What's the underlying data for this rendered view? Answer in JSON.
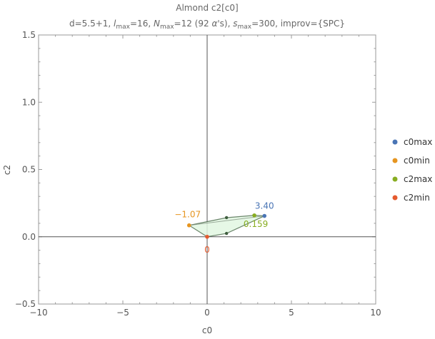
{
  "chart_data": {
    "type": "scatter",
    "title": "Almond c2[c0]",
    "subtitle_parts": {
      "d": "d=5.5+1, ",
      "l_sym": "l",
      "l_sub": "max",
      "l_val": "=16, ",
      "n_sym": "N",
      "n_sub": "max",
      "n_val": "=12 (92 ",
      "alpha": "α",
      "n_tail": "'s), ",
      "s_sym": "s",
      "s_sub": "max",
      "s_val": "=300, improv={SPC}"
    },
    "xlabel": "c0",
    "ylabel": "c2",
    "xlim": [
      -10,
      10
    ],
    "ylim": [
      -0.5,
      1.5
    ],
    "x_ticks": [
      -10,
      -5,
      0,
      5,
      10
    ],
    "y_ticks": [
      -0.5,
      0.0,
      0.5,
      1.0,
      1.5
    ],
    "x_tick_labels": [
      "−10",
      "−5",
      "0",
      "5",
      "10"
    ],
    "y_tick_labels": [
      "−0.5",
      "0.0",
      "0.5",
      "1.0",
      "1.5"
    ],
    "grid": false,
    "legend_position": "right",
    "region": {
      "fill": "#e2f7e2",
      "outer_boundary": [
        [
          -1.07,
          0.085
        ],
        [
          1.15,
          0.142
        ],
        [
          2.8,
          0.159
        ],
        [
          3.4,
          0.155
        ],
        [
          1.15,
          0.025
        ],
        [
          0.0,
          0.0
        ],
        [
          -1.07,
          0.085
        ]
      ],
      "inner_edge": [
        [
          -1.07,
          0.085
        ],
        [
          3.4,
          0.155
        ]
      ],
      "vertices": [
        [
          1.15,
          0.142
        ],
        [
          1.15,
          0.025
        ]
      ]
    },
    "series": [
      {
        "name": "c0max",
        "color": "#4a75b5",
        "point": [
          3.4,
          0.155
        ],
        "label": "3.40"
      },
      {
        "name": "c0min",
        "color": "#e69520",
        "point": [
          -1.07,
          0.085
        ],
        "label": "−1.07"
      },
      {
        "name": "c2max",
        "color": "#88ad21",
        "point": [
          2.8,
          0.159
        ],
        "label": "0.159"
      },
      {
        "name": "c2min",
        "color": "#e55a2e",
        "point": [
          0.0,
          0.0
        ],
        "label": "0"
      }
    ]
  }
}
